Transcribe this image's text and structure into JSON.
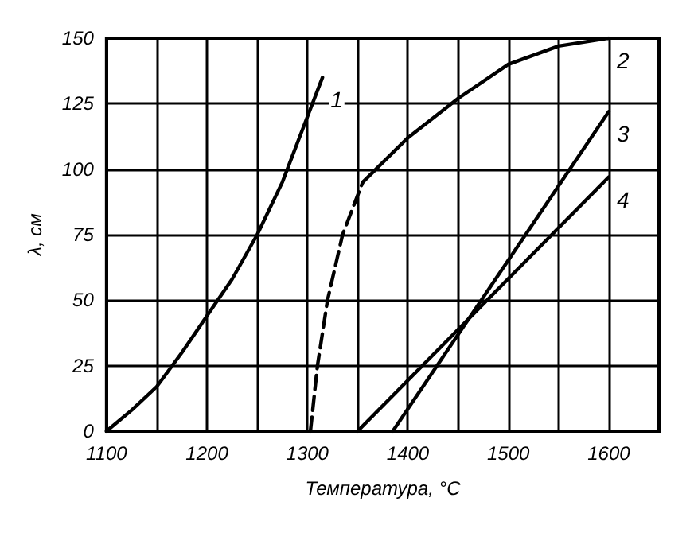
{
  "chart_data": {
    "type": "line",
    "xlabel": "Температура, °C",
    "ylabel": "λ, см",
    "xlim": [
      1100,
      1650
    ],
    "ylim": [
      0,
      150
    ],
    "xticks": [
      1100,
      {
        "value": 1150,
        "label": null
      },
      1200,
      {
        "value": 1250,
        "label": null
      },
      1300,
      {
        "value": 1350,
        "label": null
      },
      1400,
      {
        "value": 1450,
        "label": null
      },
      1500,
      {
        "value": 1550,
        "label": null
      },
      1600
    ],
    "yticks": [
      0,
      25,
      50,
      75,
      100,
      125,
      150
    ],
    "grid": true,
    "marker": "none",
    "series": [
      {
        "name": "1",
        "color": "#000000",
        "line_style": "solid",
        "x": [
          1100,
          1125,
          1150,
          1175,
          1200,
          1225,
          1250,
          1275,
          1300,
          1315
        ],
        "values": [
          0,
          8,
          17,
          30,
          44,
          58,
          75,
          95,
          120,
          135
        ]
      },
      {
        "color": "#000000",
        "line_style": "dashed",
        "x": [
          1303,
          1310,
          1320,
          1335,
          1355
        ],
        "values": [
          0,
          25,
          50,
          75,
          95
        ]
      },
      {
        "name": "2",
        "color": "#000000",
        "line_style": "solid",
        "x": [
          1355,
          1400,
          1450,
          1500,
          1550,
          1600
        ],
        "values": [
          95,
          112,
          127,
          140,
          147,
          150
        ]
      },
      {
        "name": "3",
        "color": "#000000",
        "line_style": "solid",
        "x": [
          1385,
          1600
        ],
        "values": [
          0,
          122
        ]
      },
      {
        "name": "4",
        "color": "#000000",
        "line_style": "solid",
        "x": [
          1350,
          1600
        ],
        "values": [
          0,
          97
        ]
      }
    ]
  }
}
